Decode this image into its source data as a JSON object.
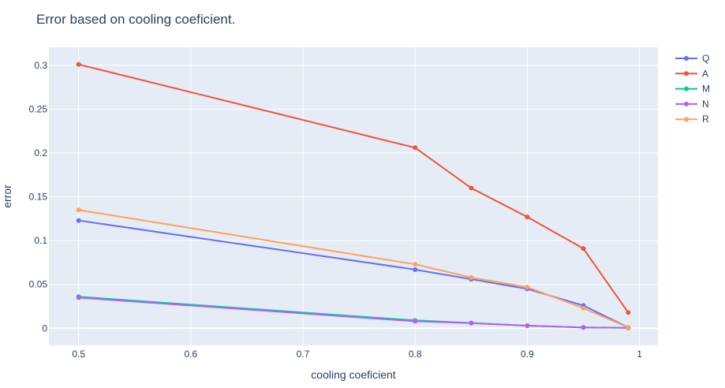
{
  "chart_data": {
    "type": "line",
    "title": "Error based on cooling coeficient.",
    "xlabel": "cooling coeficient",
    "ylabel": "error",
    "xlim": [
      0.4735,
      1.0165
    ],
    "ylim": [
      -0.0195,
      0.3205
    ],
    "xticks": [
      0.5,
      0.6,
      0.7,
      0.8,
      0.9,
      1
    ],
    "xtick_labels": [
      "0.5",
      "0.6",
      "0.7",
      "0.8",
      "0.9",
      "1"
    ],
    "yticks": [
      0,
      0.05,
      0.1,
      0.15,
      0.2,
      0.25,
      0.3
    ],
    "ytick_labels": [
      "0",
      "0.05",
      "0.1",
      "0.15",
      "0.2",
      "0.25",
      "0.3"
    ],
    "x": [
      0.5,
      0.8,
      0.85,
      0.9,
      0.95,
      0.99
    ],
    "grid": true,
    "legend_position": "top-right",
    "background": "#e5ecf6",
    "series": [
      {
        "name": "Q",
        "color": "#636efa",
        "values": [
          0.123,
          0.067,
          0.056,
          0.045,
          0.026,
          0.001
        ]
      },
      {
        "name": "A",
        "color": "#ef553b",
        "values": [
          0.301,
          0.206,
          0.16,
          0.127,
          0.091,
          0.018
        ]
      },
      {
        "name": "M",
        "color": "#00cc96",
        "values": [
          0.036,
          0.009,
          0.006,
          0.003,
          0.001,
          0.0005
        ]
      },
      {
        "name": "N",
        "color": "#ab63fa",
        "values": [
          0.035,
          0.008,
          0.006,
          0.003,
          0.001,
          0.0005
        ]
      },
      {
        "name": "R",
        "color": "#ffa15a",
        "values": [
          0.135,
          0.073,
          0.058,
          0.047,
          0.023,
          0.001
        ]
      }
    ]
  }
}
